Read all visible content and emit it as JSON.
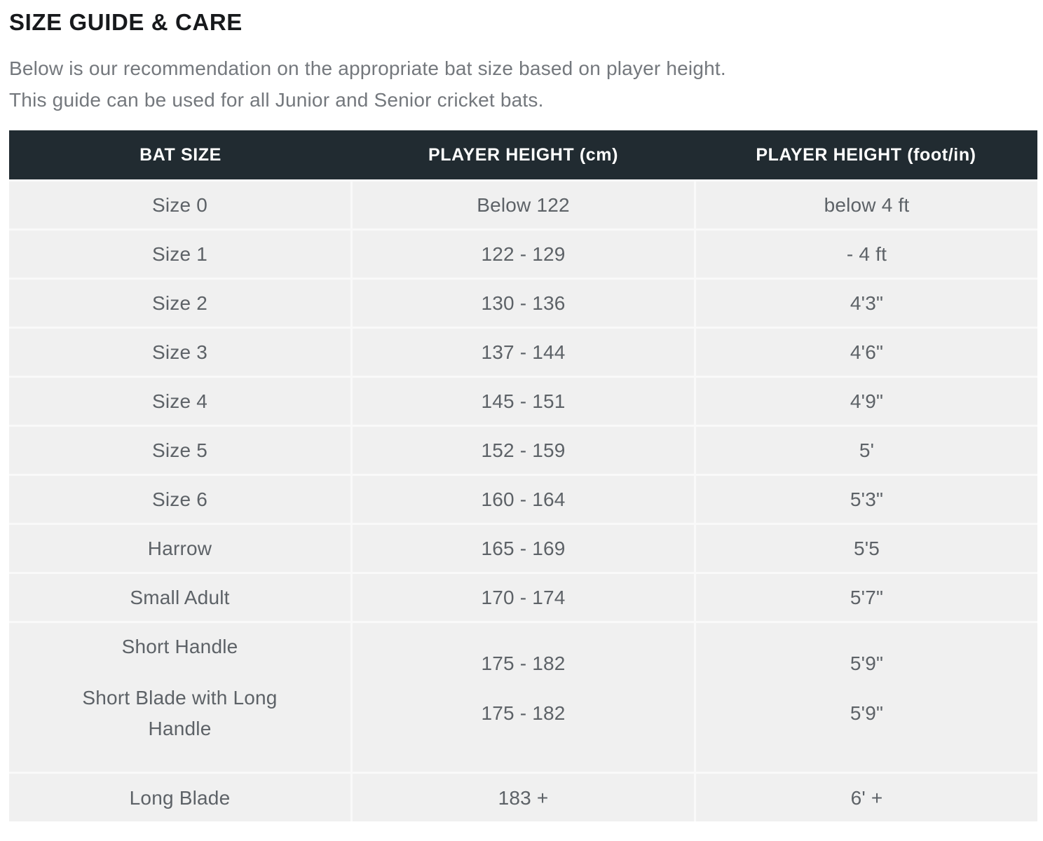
{
  "page": {
    "title": "SIZE GUIDE & CARE",
    "intro_line1": "Below is our recommendation on the appropriate bat size based on player height.",
    "intro_line2": "This guide can be used for all Junior and Senior cricket bats."
  },
  "table": {
    "columns": [
      "BAT SIZE",
      "PLAYER HEIGHT (cm)",
      "PLAYER HEIGHT (foot/in)"
    ],
    "rows": [
      {
        "bat_size": "Size 0",
        "height_cm": "Below 122",
        "height_ft": "below 4 ft"
      },
      {
        "bat_size": "Size 1",
        "height_cm": "122 - 129",
        "height_ft": "- 4 ft"
      },
      {
        "bat_size": "Size 2",
        "height_cm": "130 - 136",
        "height_ft": "4'3\""
      },
      {
        "bat_size": "Size 3",
        "height_cm": "137 - 144",
        "height_ft": "4'6\""
      },
      {
        "bat_size": "Size 4",
        "height_cm": "145 - 151",
        "height_ft": "4'9\""
      },
      {
        "bat_size": "Size 5",
        "height_cm": "152 - 159",
        "height_ft": "5'"
      },
      {
        "bat_size": "Size 6",
        "height_cm": "160 - 164",
        "height_ft": "5'3\""
      },
      {
        "bat_size": "Harrow",
        "height_cm": "165 - 169",
        "height_ft": "5'5"
      },
      {
        "bat_size": "Small Adult",
        "height_cm": "170 - 174",
        "height_ft": "5'7\""
      },
      {
        "bat_size": "Short Handle",
        "height_cm": "175 - 182",
        "height_ft": "5'9\""
      },
      {
        "bat_size": "Short Blade with Long Handle",
        "height_cm": "175 - 182",
        "height_ft": "5'9\""
      },
      {
        "bat_size": "Long Blade",
        "height_cm": "183 +",
        "height_ft": "6' +"
      }
    ]
  },
  "colors": {
    "header_bg": "#212b31",
    "row_bg": "#f0f0f0",
    "divider": "#f9f9f9",
    "header_text": "#ffffff",
    "cell_text": "#5d6267",
    "title_text": "#17191c",
    "intro_text": "#74787d",
    "page_bg": "#ffffff"
  }
}
